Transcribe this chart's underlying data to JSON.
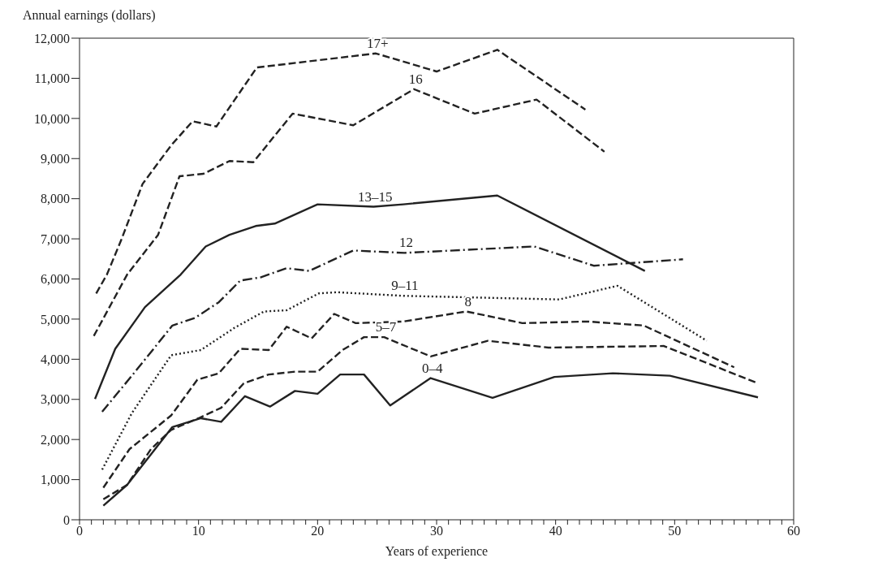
{
  "chart_data": {
    "type": "line",
    "ylabel": "Annual earnings (dollars)",
    "xlabel": "Years of experience",
    "xlim": [
      0,
      60
    ],
    "xticks": [
      0,
      {
        "value": 1,
        "label": null
      },
      {
        "value": 2,
        "label": null
      },
      {
        "value": 3,
        "label": null
      },
      {
        "value": 4,
        "label": null
      },
      {
        "value": 5,
        "label": null
      },
      {
        "value": 6,
        "label": null
      },
      {
        "value": 7,
        "label": null
      },
      {
        "value": 8,
        "label": null
      },
      {
        "value": 9,
        "label": null
      },
      10,
      {
        "value": 11,
        "label": null
      },
      {
        "value": 12,
        "label": null
      },
      {
        "value": 13,
        "label": null
      },
      {
        "value": 14,
        "label": null
      },
      {
        "value": 15,
        "label": null
      },
      {
        "value": 16,
        "label": null
      },
      {
        "value": 17,
        "label": null
      },
      {
        "value": 18,
        "label": null
      },
      {
        "value": 19,
        "label": null
      },
      20,
      {
        "value": 21,
        "label": null
      },
      {
        "value": 22,
        "label": null
      },
      {
        "value": 23,
        "label": null
      },
      {
        "value": 24,
        "label": null
      },
      {
        "value": 25,
        "label": null
      },
      {
        "value": 26,
        "label": null
      },
      {
        "value": 27,
        "label": null
      },
      {
        "value": 28,
        "label": null
      },
      {
        "value": 29,
        "label": null
      },
      30,
      {
        "value": 31,
        "label": null
      },
      {
        "value": 32,
        "label": null
      },
      {
        "value": 33,
        "label": null
      },
      {
        "value": 34,
        "label": null
      },
      {
        "value": 35,
        "label": null
      },
      {
        "value": 36,
        "label": null
      },
      {
        "value": 37,
        "label": null
      },
      {
        "value": 38,
        "label": null
      },
      {
        "value": 39,
        "label": null
      },
      40,
      {
        "value": 41,
        "label": null
      },
      {
        "value": 42,
        "label": null
      },
      {
        "value": 43,
        "label": null
      },
      {
        "value": 44,
        "label": null
      },
      {
        "value": 45,
        "label": null
      },
      {
        "value": 46,
        "label": null
      },
      {
        "value": 47,
        "label": null
      },
      {
        "value": 48,
        "label": null
      },
      {
        "value": 49,
        "label": null
      },
      50,
      {
        "value": 51,
        "label": null
      },
      {
        "value": 52,
        "label": null
      },
      {
        "value": 53,
        "label": null
      },
      {
        "value": 54,
        "label": null
      },
      {
        "value": 55,
        "label": null
      },
      {
        "value": 56,
        "label": null
      },
      {
        "value": 57,
        "label": null
      },
      {
        "value": 58,
        "label": null
      },
      {
        "value": 59,
        "label": null
      },
      60
    ],
    "ylim": [
      0,
      12000
    ],
    "yticks": [
      0,
      {
        "value": 1000,
        "label": "1,000"
      },
      {
        "value": 2000,
        "label": "2,000"
      },
      {
        "value": 3000,
        "label": "3,000"
      },
      {
        "value": 4000,
        "label": "4,000"
      },
      {
        "value": 5000,
        "label": "5,000"
      },
      {
        "value": 6000,
        "label": "6,000"
      },
      {
        "value": 7000,
        "label": "7,000"
      },
      {
        "value": 8000,
        "label": "8,000"
      },
      {
        "value": 9000,
        "label": "9,000"
      },
      {
        "value": 10000,
        "label": "10,000"
      },
      {
        "value": 11000,
        "label": "11,000"
      },
      {
        "value": 12000,
        "label": "12,000"
      }
    ],
    "grid": false,
    "legend": false,
    "marker": "none",
    "series": [
      {
        "name": "17+",
        "color": "#222222",
        "line_style": "dashed",
        "x": [
          1.4,
          2.3,
          3.5,
          5.3,
          7.7,
          9.5,
          11.5,
          14.9,
          24.9,
          30,
          35.1,
          42.5
        ],
        "values": [
          5640,
          6110,
          6970,
          8370,
          9330,
          9930,
          9800,
          11270,
          11620,
          11170,
          11710,
          10220
        ]
      },
      {
        "name": "16",
        "color": "#222222",
        "line_style": "dashed",
        "x": [
          1.2,
          4,
          6.6,
          8.4,
          10.4,
          12.6,
          14.6,
          17.9,
          23,
          28.1,
          33.2,
          38.4,
          44.1
        ],
        "values": [
          4580,
          6110,
          7100,
          8560,
          8620,
          8940,
          8910,
          10120,
          9830,
          10730,
          10120,
          10470,
          9170
        ]
      },
      {
        "name": "13–15",
        "color": "#222222",
        "line_style": "solid",
        "x": [
          1.3,
          3,
          5.5,
          8.5,
          10.6,
          12.6,
          14.8,
          16.4,
          20,
          24.7,
          27.2,
          35.1,
          47.5
        ],
        "values": [
          3010,
          4260,
          5300,
          6110,
          6810,
          7100,
          7320,
          7380,
          7860,
          7800,
          7860,
          8080,
          6200
        ]
      },
      {
        "name": "12",
        "color": "#222222",
        "line_style": "dashdot",
        "x": [
          1.9,
          4.4,
          7.8,
          9.7,
          11.7,
          13.5,
          15.2,
          17.4,
          19.3,
          23,
          27.3,
          38.2,
          43.2,
          50.7
        ],
        "values": [
          2690,
          3590,
          4840,
          5030,
          5420,
          5960,
          6040,
          6270,
          6200,
          6710,
          6650,
          6810,
          6330,
          6490
        ]
      },
      {
        "name": "9–11",
        "color": "#222222",
        "line_style": "dotted",
        "x": [
          1.9,
          4.4,
          7.7,
          10.2,
          13,
          15.5,
          17.4,
          20.1,
          21.6,
          27.2,
          40.3,
          45.2,
          52.7
        ],
        "values": [
          1250,
          2660,
          4100,
          4230,
          4780,
          5190,
          5220,
          5640,
          5670,
          5580,
          5490,
          5830,
          4460
        ]
      },
      {
        "name": "8",
        "color": "#222222",
        "line_style": "dashed",
        "x": [
          2,
          4.2,
          7.7,
          9.9,
          11.7,
          13.5,
          15.9,
          17.4,
          19.5,
          21.4,
          23.2,
          27.2,
          32.5,
          37.2,
          42.7,
          47.4,
          55
        ],
        "values": [
          800,
          1760,
          2600,
          3490,
          3650,
          4260,
          4230,
          4810,
          4520,
          5130,
          4900,
          4940,
          5190,
          4900,
          4940,
          4840,
          3800
        ]
      },
      {
        "name": "5–7",
        "color": "#222222",
        "line_style": "dashed",
        "x": [
          2,
          4,
          6,
          7.7,
          10,
          11.9,
          13.8,
          15.9,
          18.1,
          20,
          22.1,
          23.9,
          25.6,
          29.5,
          34.3,
          39.4,
          49.1,
          57
        ],
        "values": [
          510,
          870,
          1760,
          2240,
          2530,
          2790,
          3400,
          3620,
          3690,
          3690,
          4230,
          4550,
          4550,
          4070,
          4460,
          4290,
          4330,
          3400
        ]
      },
      {
        "name": "0–4",
        "color": "#222222",
        "line_style": "solid",
        "x": [
          2,
          4,
          7.8,
          10.2,
          11.9,
          13.9,
          16,
          18.1,
          20,
          21.9,
          23.9,
          26.1,
          29.5,
          34.7,
          39.9,
          44.8,
          49.6,
          57
        ],
        "values": [
          350,
          870,
          2310,
          2530,
          2440,
          3080,
          2820,
          3210,
          3140,
          3620,
          3620,
          2850,
          3530,
          3040,
          3560,
          3650,
          3590,
          3050
        ]
      }
    ]
  }
}
